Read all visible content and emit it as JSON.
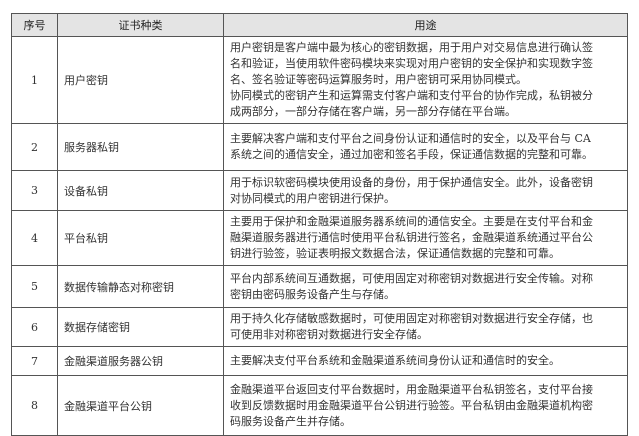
{
  "headers": [
    "序号",
    "证书种类",
    "用途"
  ],
  "rows": [
    {
      "no": "1",
      "type": "用户密钥",
      "lines": [
        "用户密钥是客户端中最为核心的密钥数据，用于用户对交易信息进行确认签",
        "名和验证，当使用软件密码模块来实现对用户密钥的安全保护和实现数字签",
        "名、签名验证等密码运算服务时，用户密钥可采用协同模式。",
        "协同模式的密钥产生和运算需支付客户端和支付平台的协作完成，私钥被分",
        "成两部分，一部分存储在客户端，另一部分存储在平台端。"
      ]
    },
    {
      "no": "2",
      "type": "服务器私钥",
      "lines": [
        "主要解决客户端和支付平台之间身份认证和通信时的安全，以及平台与 CA",
        "系统之间的通信安全，通过加密和签名手段，保证通信数据的完整和可靠。"
      ]
    },
    {
      "no": "3",
      "type": "设备私钥",
      "lines": [
        "用于标识软密码模块使用设备的身份，用于保护通信安全。此外，设备密钥",
        "对协同模式的用户密钥进行保护。"
      ]
    },
    {
      "no": "4",
      "type": "平台私钥",
      "lines": [
        "主要用于保护和金融渠道服务器系统间的通信安全。主要是在支付平台和金",
        "融渠道服务器进行通信时使用平台私钥进行签名，金融渠道系统通过平台公",
        "钥进行验签，验证表明报文数据合法，保证通信数据的完整和可靠。"
      ]
    },
    {
      "no": "5",
      "type": "数据传输静态对称密钥",
      "lines": [
        "平台内部系统间互通数据，可使用固定对称密钥对数据进行安全传输。对称",
        "密钥由密码服务设备产生与存储。"
      ]
    },
    {
      "no": "6",
      "type": "数据存储密钥",
      "lines": [
        "用于持久化存储敏感数据时，可使用固定对称密钥对数据进行安全存储，也",
        "可使用非对称密钥对数据进行安全存储。"
      ]
    },
    {
      "no": "7",
      "type": "金融渠道服务器公钥",
      "lines": [
        "主要解决支付平台系统和金融渠道系统间身份认证和通信时的安全。"
      ]
    },
    {
      "no": "8",
      "type": "金融渠道平台公钥",
      "lines": [
        "金融渠道平台返回支付平台数据时，用金融渠道平台私钥签名，支付平台接",
        "收到反馈数据时用金融渠道平台公钥进行验签。平台私钥由金融渠道机构密",
        "码服务设备产生并存储。"
      ]
    }
  ]
}
